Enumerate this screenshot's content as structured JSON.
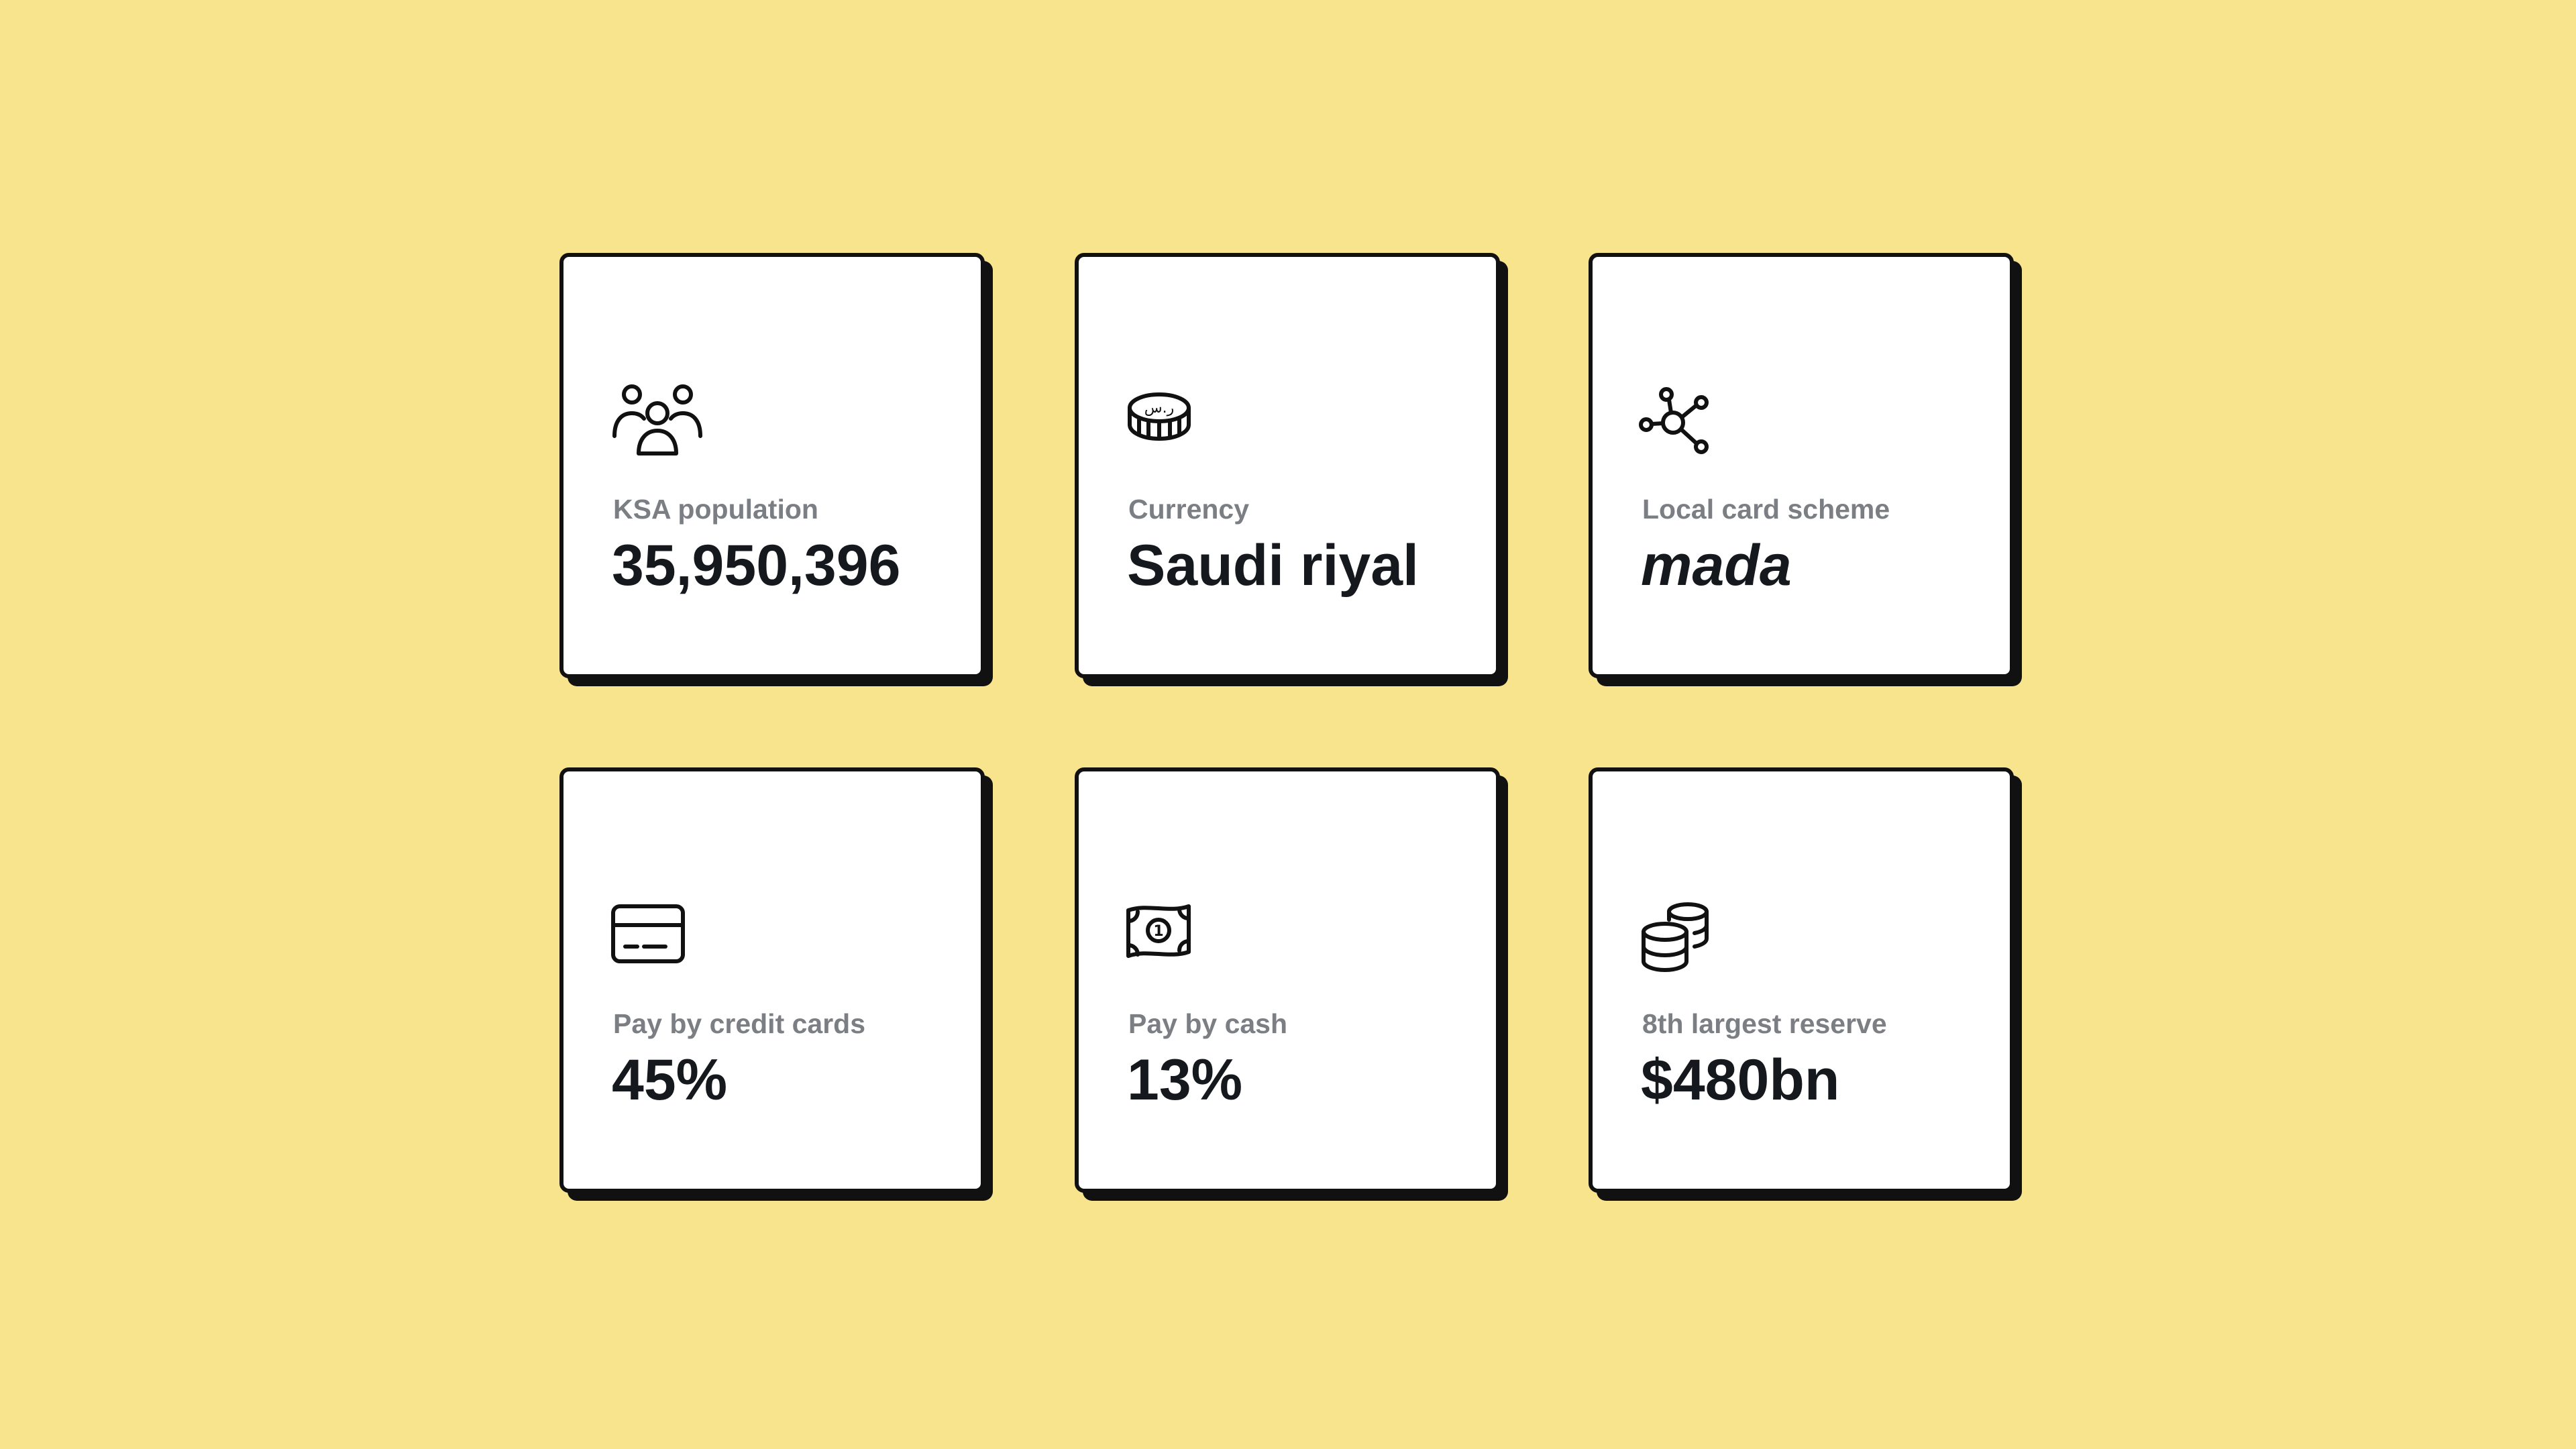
{
  "cards": [
    {
      "icon": "people-group-icon",
      "label": "KSA population",
      "value": "35,950,396"
    },
    {
      "icon": "coin-riyal-icon",
      "coin_glyph": "ر.س",
      "label": "Currency",
      "value": "Saudi riyal"
    },
    {
      "icon": "network-nodes-icon",
      "label": "Local card scheme",
      "value": "mada"
    },
    {
      "icon": "credit-card-icon",
      "label": "Pay by credit cards",
      "value": "45%"
    },
    {
      "icon": "banknote-icon",
      "note_digit": "1",
      "label": "Pay by cash",
      "value": "13%"
    },
    {
      "icon": "coin-stack-icon",
      "label": "8th largest reserve",
      "value": "$480bn"
    }
  ],
  "colors": {
    "background": "#F8E48D",
    "card": "#FFFFFF",
    "border": "#111111",
    "label": "#7B7F84",
    "value": "#15181C"
  }
}
